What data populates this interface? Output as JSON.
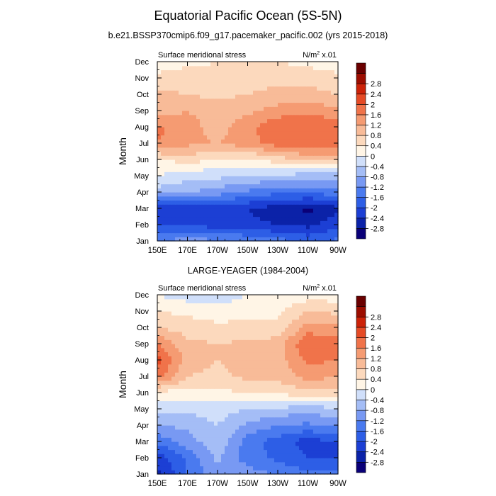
{
  "title": "Equatorial Pacific Ocean (5S-5N)",
  "chart_data": [
    {
      "type": "heatmap",
      "title": "b.e21.BSSP370cmip6.f09_g17.pacemaker_pacific.002 (yrs 2015-2018)",
      "left_label": "Surface meridional stress",
      "units_prefix": "N/m",
      "units_sup": "2",
      "units_suffix": " x.01",
      "ylabel": "Month",
      "xlabel": "",
      "x_ticks": [
        "150E",
        "170E",
        "170W",
        "150W",
        "130W",
        "110W",
        "90W"
      ],
      "y_ticks": [
        "Jan",
        "Feb",
        "Mar",
        "Apr",
        "May",
        "Jun",
        "Jul",
        "Aug",
        "Sep",
        "Oct",
        "Nov",
        "Dec"
      ],
      "x": [
        150,
        170,
        190,
        210,
        230,
        250,
        270
      ],
      "y": [
        1,
        2,
        3,
        4,
        5,
        6,
        7,
        8,
        9,
        10,
        11,
        12
      ],
      "z": [
        [
          -1.2,
          -1.0,
          -1.1,
          -1.2,
          -1.4,
          -1.7,
          -1.5
        ],
        [
          -2.1,
          -2.0,
          -2.2,
          -2.3,
          -2.4,
          -2.5,
          -2.1
        ],
        [
          -2.2,
          -2.3,
          -2.2,
          -2.4,
          -2.6,
          -2.9,
          -2.5
        ],
        [
          -0.6,
          -0.8,
          -1.0,
          -1.3,
          -1.5,
          -1.5,
          -1.4
        ],
        [
          0.0,
          -0.2,
          -0.3,
          -0.4,
          -0.5,
          -0.6,
          -0.6
        ],
        [
          0.3,
          0.6,
          0.3,
          0.3,
          0.6,
          0.8,
          0.9
        ],
        [
          1.6,
          1.3,
          1.2,
          1.4,
          1.8,
          2.0,
          1.8
        ],
        [
          1.7,
          1.4,
          1.0,
          1.5,
          1.9,
          2.0,
          1.9
        ],
        [
          1.0,
          1.2,
          1.0,
          1.1,
          1.4,
          1.5,
          1.3
        ],
        [
          0.9,
          0.8,
          0.7,
          0.8,
          0.9,
          1.0,
          0.8
        ],
        [
          0.5,
          0.6,
          0.6,
          0.7,
          0.7,
          0.6,
          0.5
        ],
        [
          0.2,
          0.3,
          0.4,
          0.5,
          0.4,
          0.3,
          0.2
        ]
      ],
      "colorbar_levels": [
        "-2.8",
        "-2.4",
        "-2",
        "-1.6",
        "-1.2",
        "-0.8",
        "-0.4",
        "0",
        "0.4",
        "0.8",
        "1.2",
        "1.6",
        "2",
        "2.4",
        "2.8"
      ]
    },
    {
      "type": "heatmap",
      "title": "LARGE-YEAGER (1984-2004)",
      "left_label": "Surface meridional stress",
      "units_prefix": "N/m",
      "units_sup": "2",
      "units_suffix": " x.01",
      "ylabel": "Month",
      "xlabel": "",
      "x_ticks": [
        "150E",
        "170E",
        "170W",
        "150W",
        "130W",
        "110W",
        "90W"
      ],
      "y_ticks": [
        "Jan",
        "Feb",
        "Mar",
        "Apr",
        "May",
        "Jun",
        "Jul",
        "Aug",
        "Sep",
        "Oct",
        "Nov",
        "Dec"
      ],
      "x": [
        150,
        170,
        190,
        210,
        230,
        250,
        270
      ],
      "y": [
        1,
        2,
        3,
        4,
        5,
        6,
        7,
        8,
        9,
        10,
        11,
        12
      ],
      "z": [
        [
          -2.5,
          -1.6,
          -0.9,
          -1.0,
          -1.2,
          -1.5,
          -1.3
        ],
        [
          -2.3,
          -1.5,
          -0.7,
          -1.4,
          -1.7,
          -2.0,
          -2.1
        ],
        [
          -1.5,
          -1.0,
          -0.5,
          -1.4,
          -1.8,
          -2.2,
          -2.0
        ],
        [
          -0.8,
          -0.7,
          -0.4,
          -0.9,
          -1.2,
          -1.3,
          -1.1
        ],
        [
          -0.3,
          -0.3,
          -0.2,
          -0.4,
          -0.5,
          -0.6,
          -0.5
        ],
        [
          0.3,
          0.2,
          0.3,
          0.4,
          0.5,
          0.6,
          0.6
        ],
        [
          1.8,
          0.8,
          0.7,
          0.9,
          0.9,
          1.4,
          1.2
        ],
        [
          2.2,
          1.0,
          0.8,
          1.0,
          1.0,
          1.7,
          1.6
        ],
        [
          1.6,
          0.9,
          0.8,
          0.9,
          1.0,
          2.0,
          1.8
        ],
        [
          0.8,
          0.6,
          0.5,
          0.5,
          0.5,
          1.4,
          1.3
        ],
        [
          0.4,
          0.3,
          0.2,
          0.3,
          0.3,
          0.8,
          0.7
        ],
        [
          0.0,
          -0.2,
          -0.3,
          0.0,
          0.1,
          0.2,
          0.2
        ]
      ],
      "colorbar_levels": [
        "-2.8",
        "-2.4",
        "-2",
        "-1.6",
        "-1.2",
        "-0.8",
        "-0.4",
        "0",
        "0.4",
        "0.8",
        "1.2",
        "1.6",
        "2",
        "2.4",
        "2.8"
      ]
    }
  ],
  "colorbar_colors": [
    "#0a0078",
    "#0b22a8",
    "#1c3fd4",
    "#2d5ee6",
    "#4a7aef",
    "#7899f3",
    "#a4bdf6",
    "#d0dffa",
    "#fff5e6",
    "#fcd9bd",
    "#f8bb98",
    "#f59b72",
    "#f0734a",
    "#e54a25",
    "#cc2208",
    "#9c0d00",
    "#6a0000"
  ]
}
